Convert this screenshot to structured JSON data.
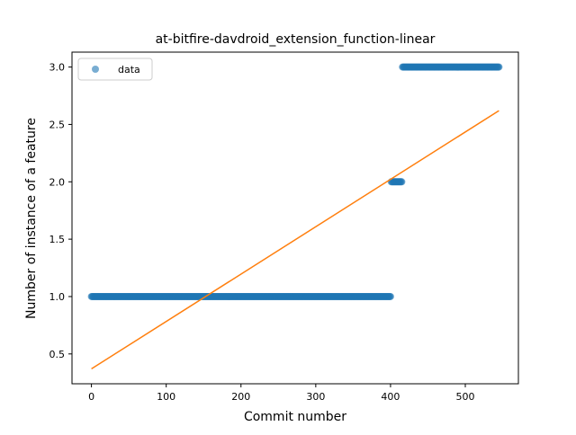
{
  "chart_data": {
    "type": "scatter",
    "title": "at-bitfire-davdroid_extension_function-linear",
    "xlabel": "Commit number",
    "ylabel": "Number of instance of a feature",
    "xlim": [
      -26,
      571
    ],
    "ylim": [
      0.24,
      3.13
    ],
    "xticks": [
      0,
      100,
      200,
      300,
      400,
      500
    ],
    "yticks": [
      0.5,
      1.0,
      1.5,
      2.0,
      2.5,
      3.0
    ],
    "xtick_labels": [
      "0",
      "100",
      "200",
      "300",
      "400",
      "500"
    ],
    "ytick_labels": [
      "0.5",
      "1.0",
      "1.5",
      "2.0",
      "2.5",
      "3.0"
    ],
    "legend": {
      "position": "top-left",
      "entries": [
        "data"
      ]
    },
    "grid": false,
    "series": [
      {
        "name": "data",
        "kind": "points",
        "color": "#1f77b4",
        "segments": [
          {
            "x_start": 0,
            "x_end": 400,
            "y": 1.0
          },
          {
            "x_start": 401,
            "x_end": 415,
            "y": 2.0
          },
          {
            "x_start": 416,
            "x_end": 545,
            "y": 3.0
          }
        ]
      },
      {
        "kind": "line",
        "color": "#ff7f0e",
        "x": [
          0,
          545
        ],
        "y": [
          0.37,
          2.62
        ]
      }
    ]
  }
}
